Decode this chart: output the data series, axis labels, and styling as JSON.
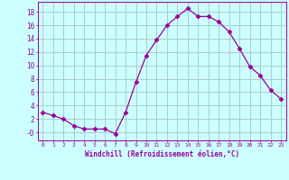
{
  "x": [
    0,
    1,
    2,
    3,
    4,
    5,
    6,
    7,
    8,
    9,
    10,
    11,
    12,
    13,
    14,
    15,
    16,
    17,
    18,
    19,
    20,
    21,
    22,
    23
  ],
  "y": [
    3,
    2.5,
    2,
    1,
    0.5,
    0.5,
    0.5,
    -0.2,
    3,
    7.5,
    11.5,
    13.8,
    16,
    17.3,
    18.5,
    17.3,
    17.3,
    16.5,
    15,
    12.5,
    9.8,
    8.5,
    6.3,
    5
  ],
  "line_color": "#990099",
  "marker": "D",
  "marker_size": 2.5,
  "bg_color": "#ccffff",
  "grid_color": "#aacccc",
  "xlabel": "Windchill (Refroidissement éolien,°C)",
  "xlabel_color": "#990099",
  "tick_color": "#990099",
  "ylabel_ticks": [
    0,
    2,
    4,
    6,
    8,
    10,
    12,
    14,
    16,
    18
  ],
  "ylabel_tick_labels": [
    "-0",
    "2",
    "4",
    "6",
    "8",
    "10",
    "12",
    "14",
    "16",
    "18"
  ],
  "xlim": [
    -0.5,
    23.5
  ],
  "ylim": [
    -1.2,
    19.5
  ],
  "xticks": [
    0,
    1,
    2,
    3,
    4,
    5,
    6,
    7,
    8,
    9,
    10,
    11,
    12,
    13,
    14,
    15,
    16,
    17,
    18,
    19,
    20,
    21,
    22,
    23
  ]
}
